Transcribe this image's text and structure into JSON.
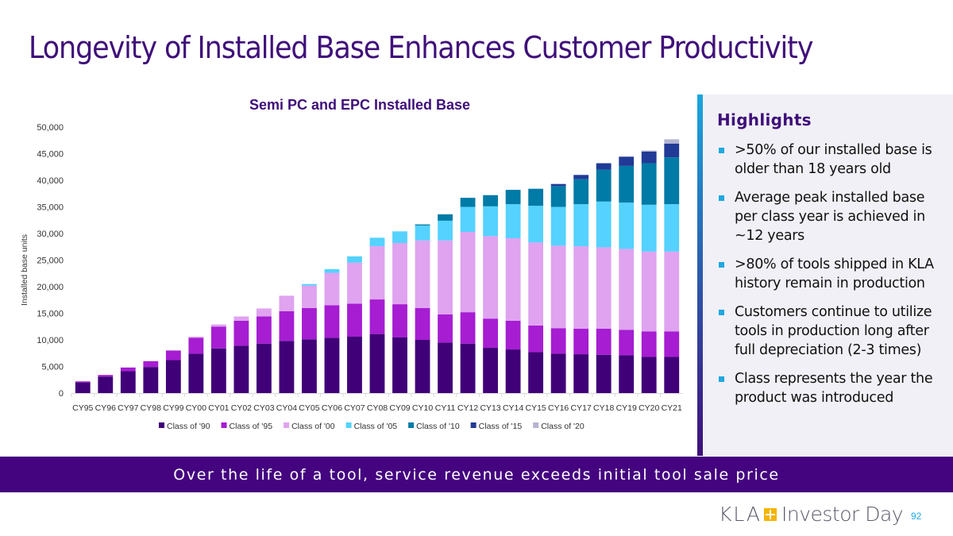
{
  "page": {
    "title": "Longevity of Installed Base Enhances Customer Productivity",
    "banner": "Over the life of a tool, service revenue exceeds initial tool sale price",
    "page_number": "92",
    "logo": {
      "brand": "KLA",
      "event": "Investor Day",
      "accent_color": "#f4b400"
    }
  },
  "highlights": {
    "heading": "Highlights",
    "items": [
      ">50% of our installed base is older than 18 years old",
      "Average peak installed base per class year is achieved in ~12 years",
      ">80% of tools shipped in KLA history remain in production",
      "Customers continue to utilize tools in production long after full depreciation (2-3 times)",
      "Class represents the year the product was introduced"
    ]
  },
  "chart_data": {
    "type": "bar",
    "stacked": true,
    "title": "Semi PC and EPC Installed Base",
    "xlabel": "",
    "ylabel": "Installed base units",
    "ylim": [
      0,
      50000
    ],
    "yticks": [
      0,
      5000,
      10000,
      15000,
      20000,
      25000,
      30000,
      35000,
      40000,
      45000,
      50000
    ],
    "ytick_labels": [
      "0",
      "5,000",
      "10,000",
      "15,000",
      "20,000",
      "25,000",
      "30,000",
      "35,000",
      "40,000",
      "45,000",
      "50,000"
    ],
    "grid": false,
    "legend_position": "bottom",
    "categories": [
      "CY95",
      "CY96",
      "CY97",
      "CY98",
      "CY99",
      "CY00",
      "CY01",
      "CY02",
      "CY03",
      "CY04",
      "CY05",
      "CY06",
      "CY07",
      "CY08",
      "CY09",
      "CY10",
      "CY11",
      "CY12",
      "CY13",
      "CY14",
      "CY15",
      "CY16",
      "CY17",
      "CY18",
      "CY19",
      "CY20",
      "CY21"
    ],
    "series": [
      {
        "name": "Class of '90",
        "color": "#400078",
        "values": [
          2000,
          3100,
          4100,
          4900,
          6200,
          7400,
          8400,
          8900,
          9300,
          9800,
          10100,
          10400,
          10600,
          11100,
          10500,
          10000,
          9500,
          9300,
          8500,
          8200,
          7700,
          7400,
          7300,
          7200,
          7100,
          6800,
          6800
        ]
      },
      {
        "name": "Class of '95",
        "color": "#a61dd2",
        "values": [
          200,
          300,
          700,
          1100,
          1800,
          3000,
          4100,
          4700,
          5100,
          5600,
          5900,
          6100,
          6200,
          6500,
          6200,
          6000,
          5300,
          5900,
          5500,
          5400,
          5000,
          4800,
          4800,
          4900,
          4800,
          4800,
          4800
        ]
      },
      {
        "name": "Class of '00",
        "color": "#dfa3f0",
        "values": [
          0,
          0,
          0,
          0,
          0,
          200,
          400,
          800,
          1500,
          2900,
          4200,
          6100,
          7700,
          10000,
          11500,
          12700,
          13900,
          15100,
          15500,
          15500,
          15600,
          15500,
          15500,
          15300,
          15200,
          15000,
          15000
        ]
      },
      {
        "name": "Class of '05",
        "color": "#55d2ff",
        "values": [
          0,
          0,
          0,
          0,
          0,
          0,
          0,
          0,
          0,
          0,
          300,
          700,
          1200,
          1600,
          2200,
          2800,
          3700,
          4700,
          5600,
          6400,
          6900,
          7300,
          7900,
          8600,
          8700,
          8800,
          8900
        ]
      },
      {
        "name": "Class of '10",
        "color": "#007aa6",
        "values": [
          0,
          0,
          0,
          0,
          0,
          0,
          0,
          0,
          0,
          0,
          0,
          0,
          0,
          0,
          0,
          200,
          1200,
          1700,
          2100,
          2700,
          3200,
          3900,
          4700,
          6000,
          6900,
          7800,
          8800
        ]
      },
      {
        "name": "Class of '15",
        "color": "#213a96",
        "values": [
          0,
          0,
          0,
          0,
          0,
          0,
          0,
          0,
          0,
          0,
          0,
          0,
          0,
          0,
          0,
          0,
          0,
          0,
          0,
          0,
          0,
          400,
          800,
          1200,
          1700,
          2200,
          2600
        ]
      },
      {
        "name": "Class of '20",
        "color": "#b5b4d2",
        "values": [
          0,
          0,
          0,
          0,
          0,
          0,
          0,
          0,
          0,
          0,
          0,
          0,
          0,
          0,
          0,
          0,
          0,
          0,
          0,
          0,
          0,
          0,
          0,
          0,
          100,
          200,
          800
        ]
      }
    ]
  }
}
